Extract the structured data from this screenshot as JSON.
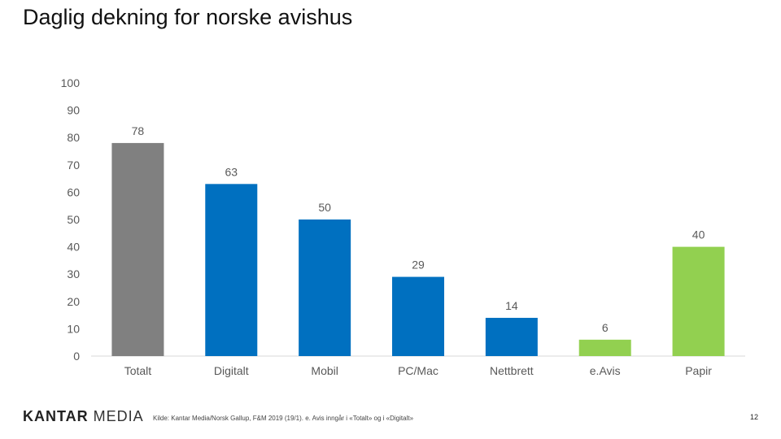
{
  "page": {
    "title": "Daglig dekning for norske avishus",
    "source": "Kilde: Kantar Media/Norsk Gallup, F&M 2019 (19/1). e. Avis inngår i «Totalt» og i «Digitalt»",
    "page_number": "12",
    "logo": {
      "part1": "KANTAR ",
      "part2": "MEDIA"
    }
  },
  "chart_data": {
    "type": "bar",
    "title": "Daglig dekning for norske avishus",
    "xlabel": "",
    "ylabel": "",
    "categories": [
      "Totalt",
      "Digitalt",
      "Mobil",
      "PC/Mac",
      "Nettbrett",
      "e.Avis",
      "Papir"
    ],
    "values": [
      78,
      63,
      50,
      29,
      14,
      6,
      40
    ],
    "colors": [
      "#808080",
      "#0070C0",
      "#0070C0",
      "#0070C0",
      "#0070C0",
      "#92D050",
      "#92D050"
    ],
    "ylim": [
      0,
      100
    ],
    "yticks": [
      0,
      10,
      20,
      30,
      40,
      50,
      60,
      70,
      80,
      90,
      100
    ],
    "grid": false,
    "legend": "none",
    "data_labels": true
  }
}
